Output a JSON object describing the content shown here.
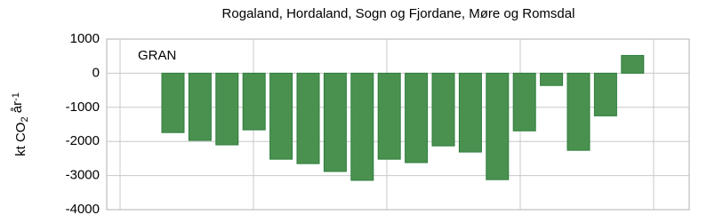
{
  "chart_data": {
    "type": "bar",
    "title": "Rogaland, Hordaland, Sogn og Fjordane, Møre og Romsdal",
    "annotation": "GRAN",
    "ylabel": [
      "kt CO",
      "2",
      " år",
      "-1"
    ],
    "categories": [
      null,
      null,
      null,
      null,
      null,
      null,
      null,
      null,
      null,
      null,
      null,
      null,
      null,
      null,
      null,
      null,
      null,
      null
    ],
    "values": [
      -1740,
      -1970,
      -2100,
      -1660,
      -2520,
      -2650,
      -2880,
      -3140,
      -2520,
      -2620,
      -2130,
      -2310,
      -3120,
      -1690,
      -360,
      -2260,
      -1250,
      520
    ],
    "color": "#4a9150",
    "ylim": [
      -4000,
      1000
    ],
    "yticks": [
      -4000,
      -3000,
      -2000,
      -1000,
      0,
      1000
    ],
    "grid": true
  }
}
